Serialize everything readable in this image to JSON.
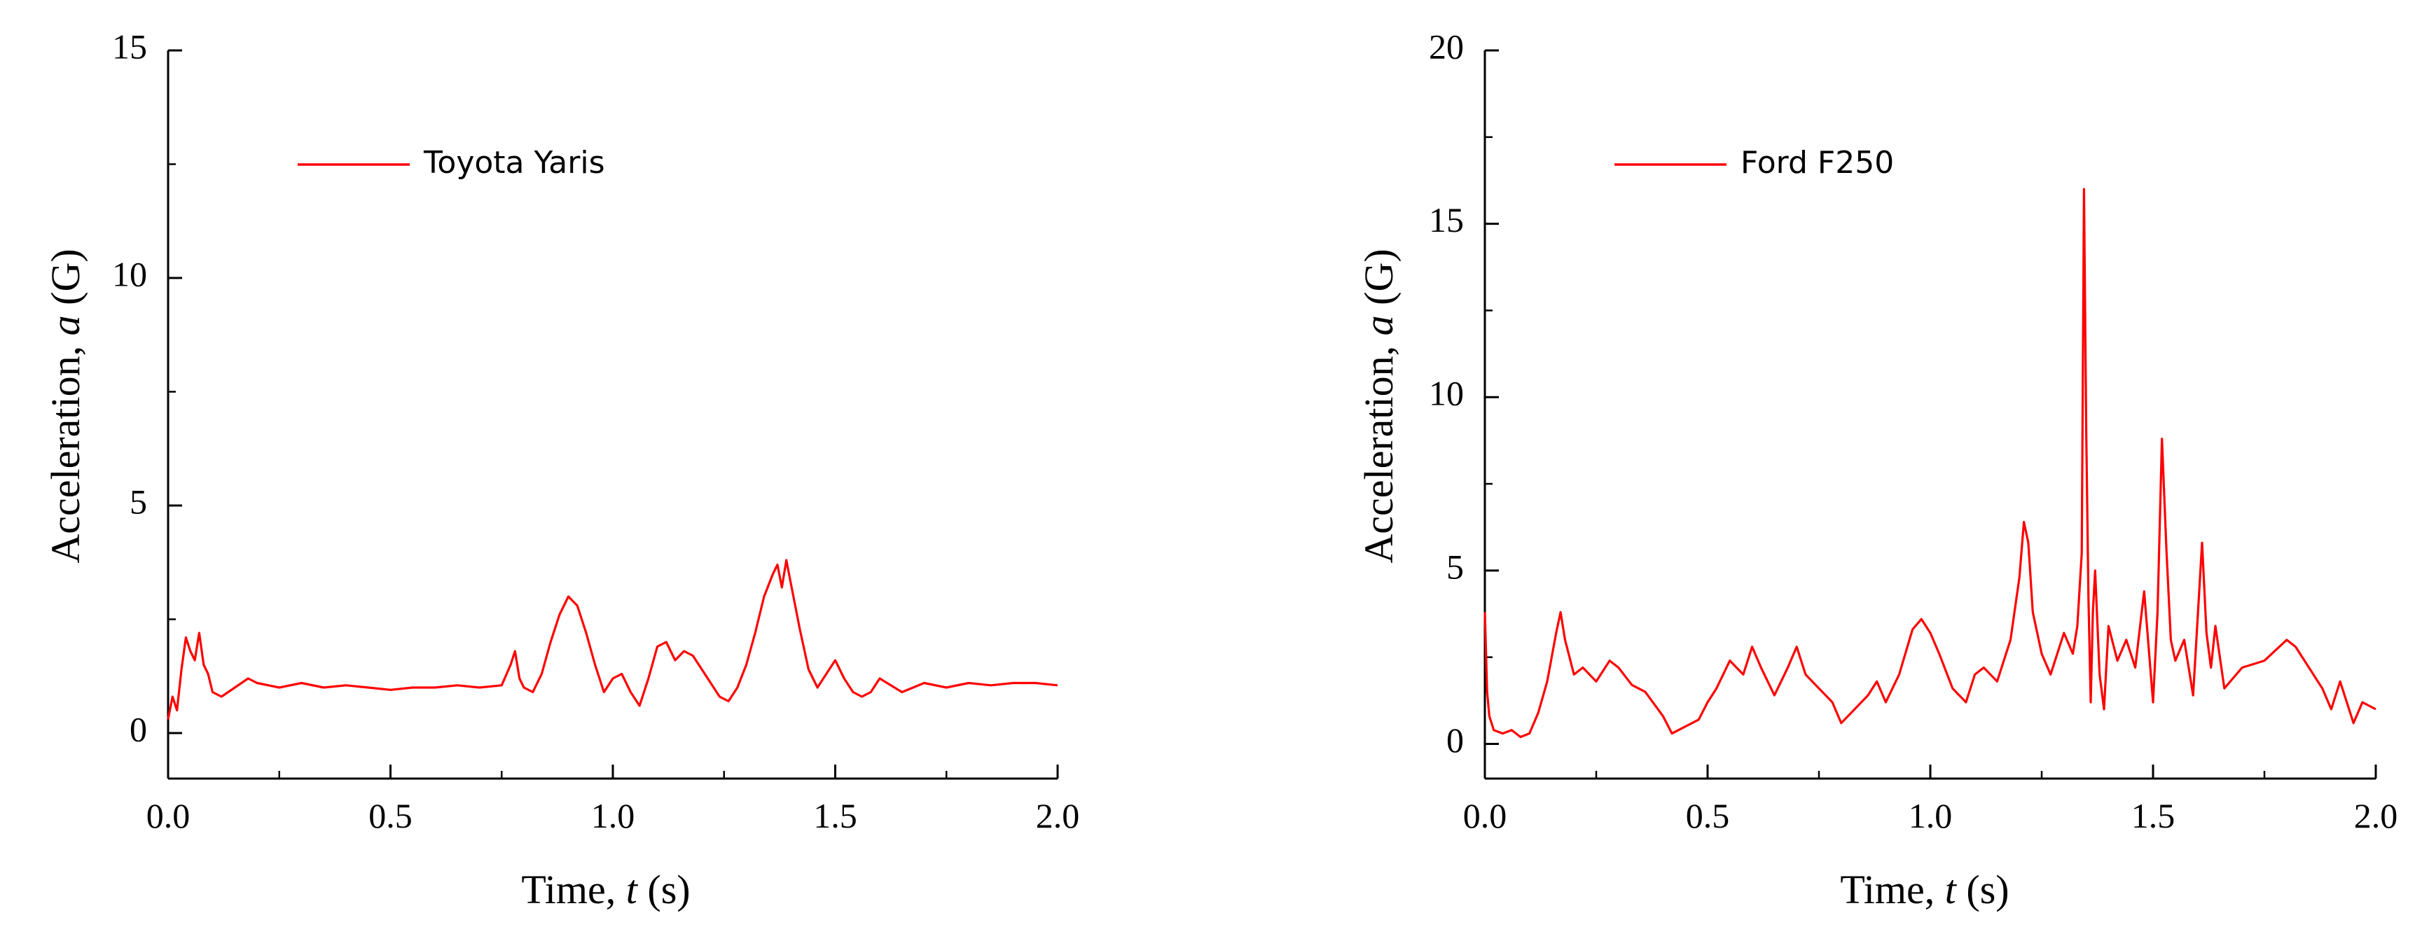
{
  "chart_data": [
    {
      "type": "line",
      "xlabel": "Time, t (s)",
      "xlabel_prefix": "Time, ",
      "xlabel_var": "t",
      "xlabel_suffix": " (s)",
      "ylabel": "Acceleration, a (G)",
      "ylabel_prefix": "Acceleration, ",
      "ylabel_var": "a",
      "ylabel_suffix": " (G)",
      "xlim": [
        0,
        2
      ],
      "ylim": [
        -1,
        15
      ],
      "xticks": [
        "0.0",
        "0.5",
        "1.0",
        "1.5",
        "2.0"
      ],
      "xtick_values": [
        0,
        0.5,
        1.0,
        1.5,
        2.0
      ],
      "yticks": [
        "0",
        "5",
        "10",
        "15"
      ],
      "ytick_values": [
        0,
        5,
        10,
        15
      ],
      "grid": false,
      "legend_position": "top-left",
      "series": [
        {
          "name": "Toyota Yaris",
          "color": "#ff0000",
          "x": [
            0,
            0.01,
            0.02,
            0.03,
            0.04,
            0.05,
            0.06,
            0.07,
            0.08,
            0.09,
            0.1,
            0.12,
            0.15,
            0.18,
            0.2,
            0.25,
            0.3,
            0.35,
            0.4,
            0.45,
            0.5,
            0.55,
            0.6,
            0.65,
            0.7,
            0.75,
            0.77,
            0.78,
            0.79,
            0.8,
            0.82,
            0.84,
            0.86,
            0.88,
            0.9,
            0.92,
            0.94,
            0.96,
            0.98,
            1.0,
            1.02,
            1.04,
            1.06,
            1.08,
            1.1,
            1.12,
            1.14,
            1.16,
            1.18,
            1.2,
            1.22,
            1.24,
            1.26,
            1.28,
            1.3,
            1.32,
            1.34,
            1.36,
            1.37,
            1.38,
            1.39,
            1.4,
            1.42,
            1.44,
            1.46,
            1.48,
            1.5,
            1.52,
            1.54,
            1.56,
            1.58,
            1.6,
            1.65,
            1.7,
            1.75,
            1.8,
            1.85,
            1.9,
            1.95,
            2.0
          ],
          "y": [
            0.3,
            0.8,
            0.5,
            1.4,
            2.1,
            1.8,
            1.6,
            2.2,
            1.5,
            1.3,
            0.9,
            0.8,
            1.0,
            1.2,
            1.1,
            1.0,
            1.1,
            1.0,
            1.05,
            1.0,
            0.95,
            1.0,
            1.0,
            1.05,
            1.0,
            1.05,
            1.5,
            1.8,
            1.2,
            1.0,
            0.9,
            1.3,
            2.0,
            2.6,
            3.0,
            2.8,
            2.2,
            1.5,
            0.9,
            1.2,
            1.3,
            0.9,
            0.6,
            1.2,
            1.9,
            2.0,
            1.6,
            1.8,
            1.7,
            1.4,
            1.1,
            0.8,
            0.7,
            1.0,
            1.5,
            2.2,
            3.0,
            3.5,
            3.7,
            3.2,
            3.8,
            3.3,
            2.3,
            1.4,
            1.0,
            1.3,
            1.6,
            1.2,
            0.9,
            0.8,
            0.9,
            1.2,
            0.9,
            1.1,
            1.0,
            1.1,
            1.05,
            1.1,
            1.1,
            1.05
          ]
        }
      ]
    },
    {
      "type": "line",
      "xlabel": "Time, t (s)",
      "xlabel_prefix": "Time, ",
      "xlabel_var": "t",
      "xlabel_suffix": " (s)",
      "ylabel": "Acceleration, a (G)",
      "ylabel_prefix": "Acceleration, ",
      "ylabel_var": "a",
      "ylabel_suffix": " (G)",
      "xlim": [
        0,
        2
      ],
      "ylim": [
        -1,
        20
      ],
      "xticks": [
        "0.0",
        "0.5",
        "1.0",
        "1.5",
        "2.0"
      ],
      "xtick_values": [
        0,
        0.5,
        1.0,
        1.5,
        2.0
      ],
      "yticks": [
        "0",
        "5",
        "10",
        "15",
        "20"
      ],
      "ytick_values": [
        0,
        5,
        10,
        15,
        20
      ],
      "grid": false,
      "legend_position": "top-left",
      "series": [
        {
          "name": "Ford F250",
          "color": "#ff0000",
          "x": [
            0,
            0.005,
            0.01,
            0.02,
            0.04,
            0.06,
            0.08,
            0.1,
            0.12,
            0.14,
            0.16,
            0.17,
            0.18,
            0.2,
            0.22,
            0.25,
            0.28,
            0.3,
            0.33,
            0.36,
            0.4,
            0.42,
            0.45,
            0.48,
            0.5,
            0.52,
            0.55,
            0.58,
            0.6,
            0.62,
            0.65,
            0.68,
            0.7,
            0.72,
            0.75,
            0.78,
            0.8,
            0.83,
            0.86,
            0.88,
            0.9,
            0.93,
            0.96,
            0.98,
            1.0,
            1.02,
            1.05,
            1.08,
            1.1,
            1.12,
            1.15,
            1.18,
            1.2,
            1.21,
            1.22,
            1.23,
            1.25,
            1.27,
            1.3,
            1.32,
            1.33,
            1.34,
            1.345,
            1.35,
            1.355,
            1.36,
            1.365,
            1.37,
            1.38,
            1.39,
            1.4,
            1.42,
            1.44,
            1.46,
            1.48,
            1.5,
            1.51,
            1.52,
            1.53,
            1.54,
            1.55,
            1.57,
            1.59,
            1.6,
            1.61,
            1.62,
            1.63,
            1.64,
            1.66,
            1.7,
            1.75,
            1.8,
            1.82,
            1.85,
            1.88,
            1.9,
            1.92,
            1.95,
            1.97,
            2.0
          ],
          "y": [
            3.8,
            1.5,
            0.8,
            0.4,
            0.3,
            0.4,
            0.2,
            0.3,
            0.9,
            1.8,
            3.2,
            3.8,
            3.0,
            2.0,
            2.2,
            1.8,
            2.4,
            2.2,
            1.7,
            1.5,
            0.8,
            0.3,
            0.5,
            0.7,
            1.2,
            1.6,
            2.4,
            2.0,
            2.8,
            2.2,
            1.4,
            2.2,
            2.8,
            2.0,
            1.6,
            1.2,
            0.6,
            1.0,
            1.4,
            1.8,
            1.2,
            2.0,
            3.3,
            3.6,
            3.2,
            2.6,
            1.6,
            1.2,
            2.0,
            2.2,
            1.8,
            3.0,
            4.8,
            6.4,
            5.8,
            3.8,
            2.6,
            2.0,
            3.2,
            2.6,
            3.4,
            5.5,
            16.0,
            9.0,
            4.2,
            1.2,
            3.8,
            5.0,
            2.0,
            1.0,
            3.4,
            2.4,
            3.0,
            2.2,
            4.4,
            1.2,
            3.8,
            8.8,
            5.6,
            3.0,
            2.4,
            3.0,
            1.4,
            3.6,
            5.8,
            3.2,
            2.2,
            3.4,
            1.6,
            2.2,
            2.4,
            3.0,
            2.8,
            2.2,
            1.6,
            1.0,
            1.8,
            0.6,
            1.2,
            1.0
          ]
        }
      ]
    }
  ]
}
